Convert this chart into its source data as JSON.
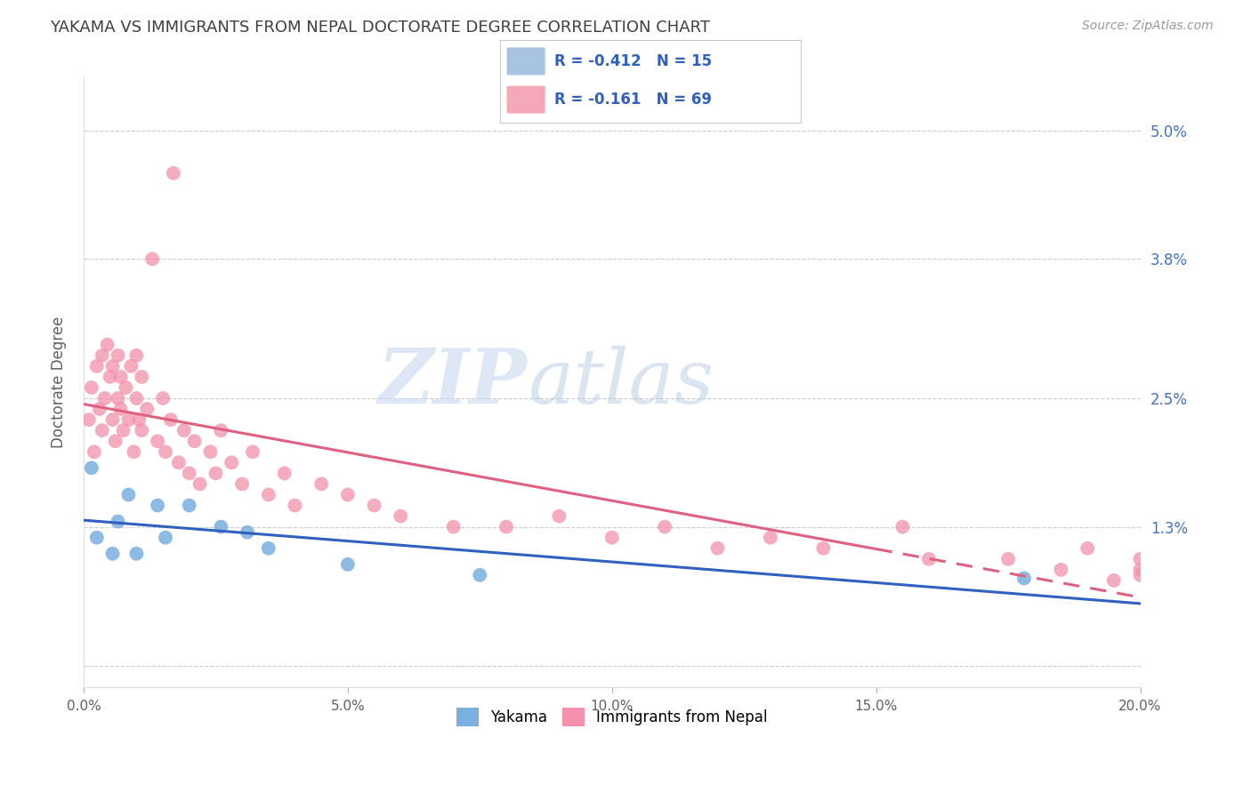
{
  "title": "YAKAMA VS IMMIGRANTS FROM NEPAL DOCTORATE DEGREE CORRELATION CHART",
  "source": "Source: ZipAtlas.com",
  "ylabel": "Doctorate Degree",
  "xlim": [
    0.0,
    20.0
  ],
  "ylim": [
    -0.2,
    5.5
  ],
  "yticks": [
    0.0,
    1.3,
    2.5,
    3.8,
    5.0
  ],
  "xticks": [
    0.0,
    5.0,
    10.0,
    15.0,
    20.0
  ],
  "xtick_labels": [
    "0.0%",
    "5.0%",
    "10.0%",
    "15.0%",
    "20.0%"
  ],
  "ytick_labels": [
    "",
    "1.3%",
    "2.5%",
    "3.8%",
    "5.0%"
  ],
  "legend_entries": [
    {
      "label": "Yakama",
      "color": "#a8c4e0",
      "R": "-0.412",
      "N": "15"
    },
    {
      "label": "Immigrants from Nepal",
      "color": "#f4a8b8",
      "R": "-0.161",
      "N": "69"
    }
  ],
  "yakama_x": [
    0.15,
    0.25,
    0.55,
    0.65,
    0.85,
    1.0,
    1.4,
    1.55,
    2.0,
    2.6,
    3.1,
    3.5,
    5.0,
    7.5,
    17.8
  ],
  "yakama_y": [
    1.85,
    1.2,
    1.05,
    1.35,
    1.6,
    1.05,
    1.5,
    1.2,
    1.5,
    1.3,
    1.25,
    1.1,
    0.95,
    0.85,
    0.82
  ],
  "nepal_x": [
    0.1,
    0.15,
    0.2,
    0.25,
    0.3,
    0.35,
    0.35,
    0.4,
    0.45,
    0.5,
    0.55,
    0.55,
    0.6,
    0.65,
    0.65,
    0.7,
    0.7,
    0.75,
    0.8,
    0.85,
    0.9,
    0.95,
    1.0,
    1.0,
    1.05,
    1.1,
    1.1,
    1.2,
    1.3,
    1.4,
    1.5,
    1.55,
    1.65,
    1.7,
    1.8,
    1.9,
    2.0,
    2.1,
    2.2,
    2.4,
    2.5,
    2.6,
    2.8,
    3.0,
    3.2,
    3.5,
    3.8,
    4.0,
    4.5,
    5.0,
    5.5,
    6.0,
    7.0,
    8.0,
    9.0,
    10.0,
    11.0,
    12.0,
    13.0,
    14.0,
    15.5,
    16.0,
    17.5,
    18.5,
    19.0,
    19.5,
    20.0,
    20.0,
    20.0
  ],
  "nepal_y": [
    2.3,
    2.6,
    2.0,
    2.8,
    2.4,
    2.9,
    2.2,
    2.5,
    3.0,
    2.7,
    2.3,
    2.8,
    2.1,
    2.5,
    2.9,
    2.4,
    2.7,
    2.2,
    2.6,
    2.3,
    2.8,
    2.0,
    2.5,
    2.9,
    2.3,
    2.7,
    2.2,
    2.4,
    3.8,
    2.1,
    2.5,
    2.0,
    2.3,
    4.6,
    1.9,
    2.2,
    1.8,
    2.1,
    1.7,
    2.0,
    1.8,
    2.2,
    1.9,
    1.7,
    2.0,
    1.6,
    1.8,
    1.5,
    1.7,
    1.6,
    1.5,
    1.4,
    1.3,
    1.3,
    1.4,
    1.2,
    1.3,
    1.1,
    1.2,
    1.1,
    1.3,
    1.0,
    1.0,
    0.9,
    1.1,
    0.8,
    0.9,
    1.0,
    0.85
  ],
  "yakama_color": "#7ab0e0",
  "nepal_color": "#f490aa",
  "yakama_line_color": "#3060c0",
  "nepal_line_color": "#e06080",
  "watermark_zip": "ZIP",
  "watermark_atlas": "atlas",
  "background_color": "#ffffff",
  "grid_color": "#cccccc",
  "title_color": "#404040",
  "axis_label_color": "#606060",
  "right_tick_color": "#4472c4",
  "legend_R_color": "#3060c0",
  "legend_N_color": "#3060c0"
}
